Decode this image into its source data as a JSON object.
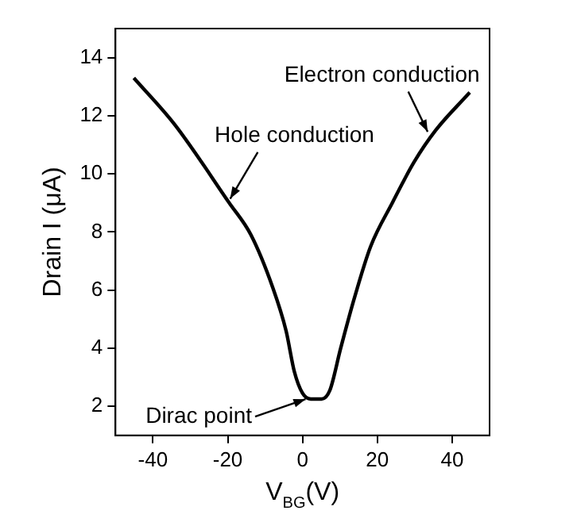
{
  "chart_data": {
    "type": "line",
    "xlabel": "V$_{BG}$(V)",
    "ylabel": "Drain I (μA)",
    "series": [
      {
        "color": "#000000",
        "x": [
          -45.1,
          -34.2,
          -19.6,
          -13.8,
          -8,
          -4.4,
          -2.2,
          0,
          2.2,
          5.1,
          7.3,
          10.2,
          13.8,
          18.2,
          24,
          29.8,
          35.6,
          44.7
        ],
        "values": [
          13.3,
          11.7,
          9.0,
          7.9,
          6.1,
          4.6,
          3.2,
          2.45,
          2.25,
          2.25,
          2.55,
          4.0,
          5.7,
          7.5,
          9.0,
          10.4,
          11.5,
          12.8
        ]
      }
    ],
    "xlim": [
      -50,
      50
    ],
    "xticks": [
      -40,
      -20,
      0,
      20,
      40
    ],
    "ylim": [
      1,
      15
    ],
    "yticks": [
      2,
      4,
      6,
      8,
      10,
      12,
      14
    ],
    "grid": false,
    "legend": false,
    "marker": "none",
    "line_style": "solid",
    "annotations": [
      {
        "text": "Hole conduction",
        "x": -20,
        "y": 9
      },
      {
        "text": "Electron conduction",
        "x": 34,
        "y": 11.3
      },
      {
        "text": "Dirac point",
        "x": 2,
        "y": 2.3
      }
    ]
  }
}
